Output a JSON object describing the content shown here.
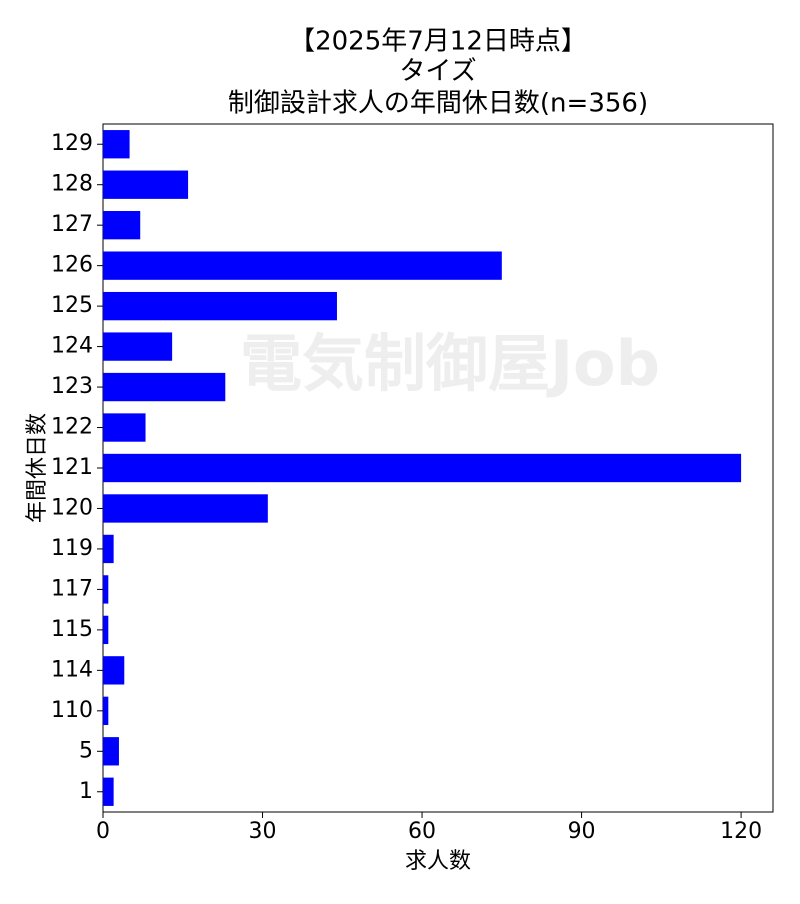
{
  "chart_data": {
    "type": "barh",
    "title": [
      "【2025年7月12日時点】",
      "タイズ",
      "制御設計求人の年間休日数(n=356)"
    ],
    "watermark": "電気制御屋Job",
    "xlabel": "求人数",
    "ylabel": "年間休日数",
    "categories": [
      "1",
      "5",
      "110",
      "114",
      "115",
      "117",
      "119",
      "120",
      "121",
      "122",
      "123",
      "124",
      "125",
      "126",
      "127",
      "128",
      "129"
    ],
    "values": [
      2,
      3,
      1,
      4,
      1,
      1,
      2,
      31,
      120,
      8,
      23,
      13,
      44,
      75,
      7,
      16,
      5
    ],
    "color": "#0000ff",
    "xlim": [
      0,
      126
    ],
    "xticks": [
      0,
      30,
      60,
      90,
      120
    ]
  }
}
